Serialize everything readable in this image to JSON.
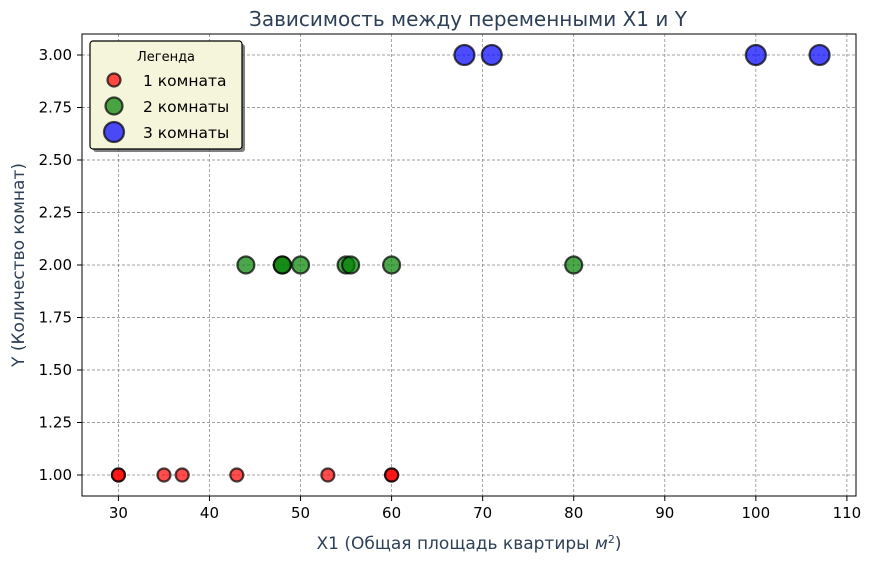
{
  "chart_data": {
    "type": "scatter",
    "title": "Зависимость между переменными X1 и Y",
    "xlabel": "X1 (Общая площадь квартиры м²)",
    "xlabel_main": "X1 (Общая площадь квартиры ",
    "xlabel_unit": "м",
    "xlabel_sup": "2",
    "xlabel_close": ")",
    "ylabel": "Y (Количество комнат)",
    "xlim": [
      26,
      111
    ],
    "ylim": [
      0.9,
      3.1
    ],
    "xticks": [
      30,
      40,
      50,
      60,
      70,
      80,
      90,
      100,
      110
    ],
    "yticks": [
      1.0,
      1.25,
      1.5,
      1.75,
      2.0,
      2.25,
      2.5,
      2.75,
      3.0
    ],
    "xtick_labels": [
      "30",
      "40",
      "50",
      "60",
      "70",
      "80",
      "90",
      "100",
      "110"
    ],
    "ytick_labels": [
      "1.00",
      "1.25",
      "1.50",
      "1.75",
      "2.00",
      "2.25",
      "2.50",
      "2.75",
      "3.00"
    ],
    "grid": true,
    "legend": {
      "title": "Легенда",
      "placement": "top-left"
    },
    "series": [
      {
        "name": "1 комната",
        "color": "#ff0000",
        "points": [
          {
            "x": 30,
            "y": 1
          },
          {
            "x": 30,
            "y": 1
          },
          {
            "x": 35,
            "y": 1
          },
          {
            "x": 37,
            "y": 1
          },
          {
            "x": 43,
            "y": 1
          },
          {
            "x": 53,
            "y": 1
          },
          {
            "x": 60,
            "y": 1
          },
          {
            "x": 60,
            "y": 1
          }
        ]
      },
      {
        "name": "2 комнаты",
        "color": "#008000",
        "points": [
          {
            "x": 44,
            "y": 2
          },
          {
            "x": 48,
            "y": 2
          },
          {
            "x": 48,
            "y": 2
          },
          {
            "x": 50,
            "y": 2
          },
          {
            "x": 55,
            "y": 2
          },
          {
            "x": 55.5,
            "y": 2
          },
          {
            "x": 60,
            "y": 2
          },
          {
            "x": 80,
            "y": 2
          }
        ]
      },
      {
        "name": "3 комнаты",
        "color": "#0000ff",
        "points": [
          {
            "x": 68,
            "y": 3
          },
          {
            "x": 71,
            "y": 3
          },
          {
            "x": 100,
            "y": 3
          },
          {
            "x": 107,
            "y": 3
          }
        ]
      }
    ]
  }
}
